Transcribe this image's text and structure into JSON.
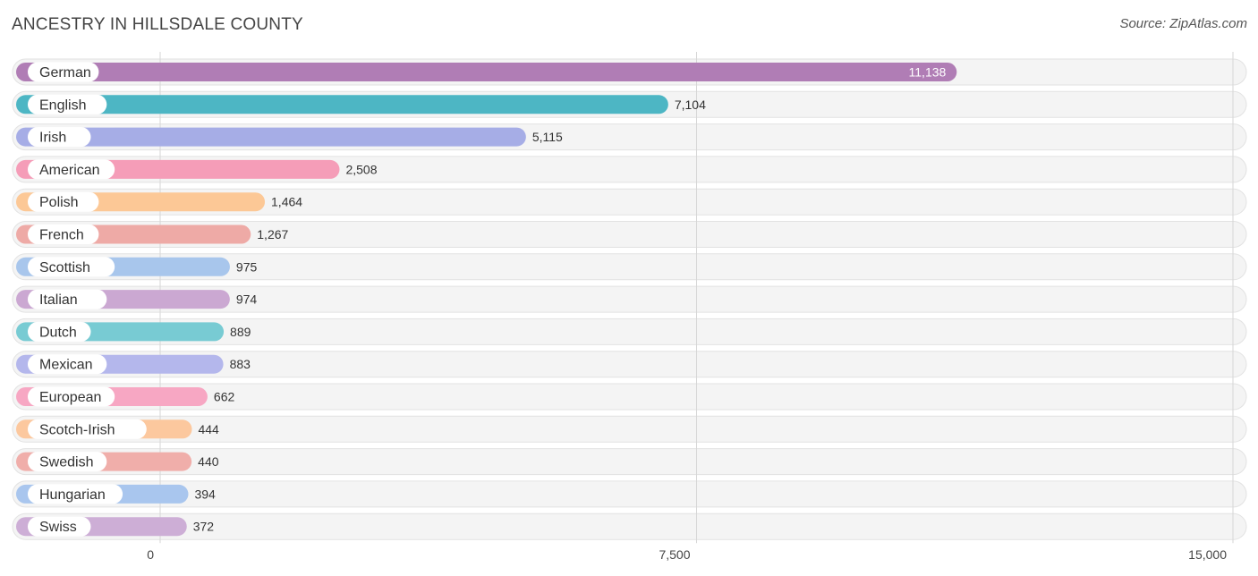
{
  "title": "ANCESTRY IN HILLSDALE COUNTY",
  "source": "Source: ZipAtlas.com",
  "chart_data": {
    "type": "bar",
    "orientation": "horizontal",
    "title": "ANCESTRY IN HILLSDALE COUNTY",
    "categories": [
      "German",
      "English",
      "Irish",
      "American",
      "Polish",
      "French",
      "Scottish",
      "Italian",
      "Dutch",
      "Mexican",
      "European",
      "Scotch-Irish",
      "Swedish",
      "Hungarian",
      "Swiss"
    ],
    "values": [
      11138,
      7104,
      5115,
      2508,
      1464,
      1267,
      975,
      974,
      889,
      883,
      662,
      444,
      440,
      394,
      372
    ],
    "value_labels": [
      "11,138",
      "7,104",
      "5,115",
      "2,508",
      "1,464",
      "1,267",
      "975",
      "974",
      "889",
      "883",
      "662",
      "444",
      "440",
      "394",
      "372"
    ],
    "colors": [
      "#b07db5",
      "#4db6c4",
      "#a6ade6",
      "#f59db8",
      "#fcc896",
      "#eeaaa6",
      "#a8c6ec",
      "#cba8d2",
      "#78cbd3",
      "#b4b7ec",
      "#f7a7c3",
      "#fcc89e",
      "#f0aeaa",
      "#a9c6ee",
      "#cdaed6"
    ],
    "xlim": [
      0,
      15000
    ],
    "ticks": [
      0,
      7500,
      15000
    ],
    "tick_labels": [
      "0",
      "7,500",
      "15,000"
    ],
    "grid": true
  }
}
